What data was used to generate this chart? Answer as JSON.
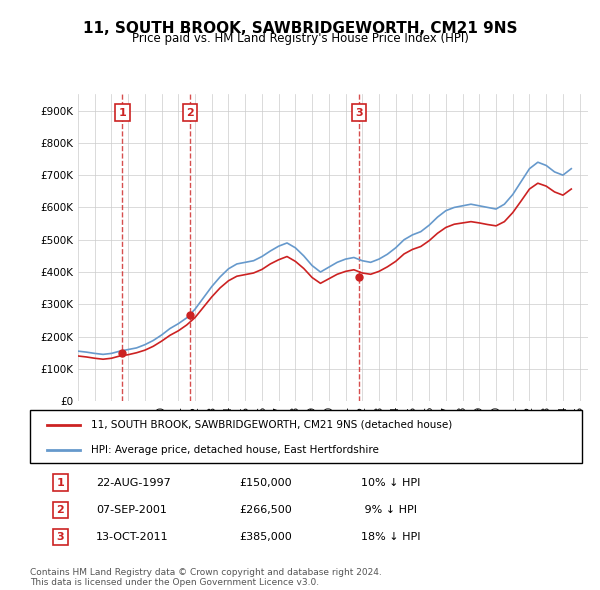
{
  "title": "11, SOUTH BROOK, SAWBRIDGEWORTH, CM21 9NS",
  "subtitle": "Price paid vs. HM Land Registry's House Price Index (HPI)",
  "legend_line1": "11, SOUTH BROOK, SAWBRIDGEWORTH, CM21 9NS (detached house)",
  "legend_line2": "HPI: Average price, detached house, East Hertfordshire",
  "footer1": "Contains HM Land Registry data © Crown copyright and database right 2024.",
  "footer2": "This data is licensed under the Open Government Licence v3.0.",
  "transactions": [
    {
      "num": 1,
      "date": "22-AUG-1997",
      "price": "£150,000",
      "hpi": "10% ↓ HPI",
      "year": 1997.65
    },
    {
      "num": 2,
      "date": "07-SEP-2001",
      "price": "£266,500",
      "hpi": "9% ↓ HPI",
      "year": 2001.69
    },
    {
      "num": 3,
      "date": "13-OCT-2011",
      "price": "£385,000",
      "hpi": "18% ↓ HPI",
      "year": 2011.79
    }
  ],
  "transaction_prices": [
    150000,
    266500,
    385000
  ],
  "hpi_color": "#6699cc",
  "price_color": "#cc2222",
  "marker_box_color": "#cc2222",
  "background_color": "#ffffff",
  "grid_color": "#cccccc",
  "ylim": [
    0,
    950000
  ],
  "yticks": [
    0,
    100000,
    200000,
    300000,
    400000,
    500000,
    600000,
    700000,
    800000,
    900000
  ],
  "hpi_data_x": [
    1995,
    1995.5,
    1996,
    1996.5,
    1997,
    1997.5,
    1998,
    1998.5,
    1999,
    1999.5,
    2000,
    2000.5,
    2001,
    2001.5,
    2002,
    2002.5,
    2003,
    2003.5,
    2004,
    2004.5,
    2005,
    2005.5,
    2006,
    2006.5,
    2007,
    2007.5,
    2008,
    2008.5,
    2009,
    2009.5,
    2010,
    2010.5,
    2011,
    2011.5,
    2012,
    2012.5,
    2013,
    2013.5,
    2014,
    2014.5,
    2015,
    2015.5,
    2016,
    2016.5,
    2017,
    2017.5,
    2018,
    2018.5,
    2019,
    2019.5,
    2020,
    2020.5,
    2021,
    2021.5,
    2022,
    2022.5,
    2023,
    2023.5,
    2024,
    2024.5
  ],
  "hpi_data_y": [
    155000,
    152000,
    148000,
    145000,
    148000,
    155000,
    160000,
    165000,
    175000,
    188000,
    205000,
    225000,
    240000,
    258000,
    285000,
    320000,
    355000,
    385000,
    410000,
    425000,
    430000,
    435000,
    448000,
    465000,
    480000,
    490000,
    475000,
    450000,
    420000,
    400000,
    415000,
    430000,
    440000,
    445000,
    435000,
    430000,
    440000,
    455000,
    475000,
    500000,
    515000,
    525000,
    545000,
    570000,
    590000,
    600000,
    605000,
    610000,
    605000,
    600000,
    595000,
    610000,
    640000,
    680000,
    720000,
    740000,
    730000,
    710000,
    700000,
    720000
  ],
  "price_data_x": [
    1995,
    1995.5,
    1996,
    1996.5,
    1997,
    1997.5,
    1998,
    1998.5,
    1999,
    1999.5,
    2000,
    2000.5,
    2001,
    2001.5,
    2002,
    2002.5,
    2003,
    2003.5,
    2004,
    2004.5,
    2005,
    2005.5,
    2006,
    2006.5,
    2007,
    2007.5,
    2008,
    2008.5,
    2009,
    2009.5,
    2010,
    2010.5,
    2011,
    2011.5,
    2012,
    2012.5,
    2013,
    2013.5,
    2014,
    2014.5,
    2015,
    2015.5,
    2016,
    2016.5,
    2017,
    2017.5,
    2018,
    2018.5,
    2019,
    2019.5,
    2020,
    2020.5,
    2021,
    2021.5,
    2022,
    2022.5,
    2023,
    2023.5,
    2024,
    2024.5
  ],
  "price_data_y": [
    140000,
    137000,
    133000,
    130000,
    133000,
    140000,
    144000,
    150000,
    158000,
    170000,
    186000,
    204000,
    218000,
    236000,
    259000,
    291000,
    323000,
    351000,
    373000,
    387000,
    392000,
    397000,
    408000,
    425000,
    438000,
    448000,
    433000,
    411000,
    383000,
    365000,
    379000,
    393000,
    402000,
    407000,
    397000,
    393000,
    402000,
    416000,
    433000,
    456000,
    470000,
    479000,
    497000,
    520000,
    538000,
    548000,
    552000,
    556000,
    552000,
    547000,
    543000,
    556000,
    584000,
    620000,
    657000,
    675000,
    666000,
    648000,
    638000,
    657000
  ]
}
